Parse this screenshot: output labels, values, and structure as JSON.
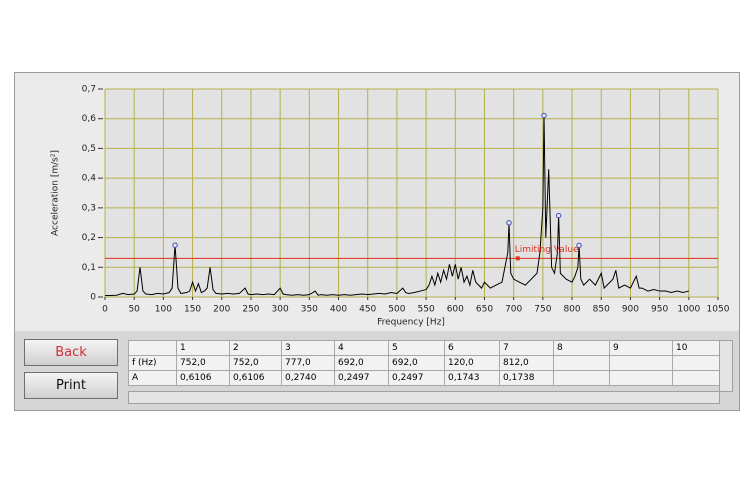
{
  "chart_data": {
    "type": "line",
    "y_label": "Acceleration [m/s²]",
    "x_label": "Frequency [Hz]",
    "color": "#000000",
    "grid": true,
    "grid_color": "#b5b04a",
    "xlim": [
      0,
      1050
    ],
    "xticks": [
      0,
      50,
      100,
      150,
      200,
      250,
      300,
      350,
      400,
      450,
      500,
      550,
      600,
      650,
      700,
      750,
      800,
      850,
      900,
      950,
      1000,
      1050
    ],
    "ylim": [
      0,
      0.7
    ],
    "yticks": [
      0,
      {
        "value": 0.1,
        "label": "0,1"
      },
      {
        "value": 0.2,
        "label": "0,2"
      },
      {
        "value": 0.3,
        "label": "0,3"
      },
      {
        "value": 0.4,
        "label": "0,4"
      },
      {
        "value": 0.5,
        "label": "0,5"
      },
      {
        "value": 0.6,
        "label": "0,6"
      },
      {
        "value": 0.7,
        "label": "0,7"
      }
    ],
    "x": [
      0,
      10,
      20,
      30,
      40,
      50,
      55,
      60,
      65,
      70,
      80,
      90,
      100,
      110,
      115,
      120,
      125,
      130,
      140,
      145,
      150,
      155,
      160,
      165,
      170,
      175,
      180,
      185,
      190,
      200,
      210,
      220,
      230,
      240,
      245,
      250,
      260,
      270,
      280,
      290,
      300,
      305,
      310,
      320,
      330,
      340,
      350,
      360,
      365,
      370,
      380,
      390,
      400,
      410,
      420,
      430,
      440,
      450,
      460,
      470,
      480,
      490,
      500,
      510,
      515,
      520,
      530,
      540,
      550,
      555,
      560,
      565,
      570,
      575,
      580,
      585,
      590,
      595,
      600,
      605,
      610,
      615,
      620,
      625,
      630,
      635,
      640,
      645,
      650,
      660,
      670,
      680,
      685,
      690,
      692,
      695,
      700,
      710,
      720,
      730,
      740,
      745,
      750,
      752,
      755,
      760,
      765,
      770,
      775,
      777,
      780,
      790,
      800,
      805,
      810,
      812,
      815,
      820,
      830,
      840,
      850,
      855,
      860,
      870,
      875,
      880,
      890,
      900,
      905,
      910,
      915,
      920,
      930,
      940,
      950,
      960,
      970,
      980,
      990,
      1000
    ],
    "values": [
      0.005,
      0.005,
      0.006,
      0.012,
      0.008,
      0.01,
      0.02,
      0.1,
      0.02,
      0.01,
      0.008,
      0.012,
      0.01,
      0.015,
      0.03,
      0.1743,
      0.03,
      0.012,
      0.015,
      0.02,
      0.05,
      0.02,
      0.045,
      0.015,
      0.02,
      0.03,
      0.1,
      0.025,
      0.012,
      0.01,
      0.012,
      0.01,
      0.012,
      0.03,
      0.01,
      0.008,
      0.01,
      0.008,
      0.01,
      0.008,
      0.03,
      0.01,
      0.008,
      0.006,
      0.008,
      0.006,
      0.008,
      0.02,
      0.006,
      0.008,
      0.006,
      0.008,
      0.006,
      0.008,
      0.006,
      0.008,
      0.01,
      0.008,
      0.01,
      0.012,
      0.01,
      0.015,
      0.012,
      0.03,
      0.015,
      0.012,
      0.015,
      0.02,
      0.025,
      0.04,
      0.07,
      0.04,
      0.08,
      0.05,
      0.09,
      0.06,
      0.11,
      0.07,
      0.11,
      0.06,
      0.1,
      0.05,
      0.07,
      0.04,
      0.09,
      0.05,
      0.04,
      0.03,
      0.05,
      0.03,
      0.04,
      0.05,
      0.1,
      0.15,
      0.2497,
      0.08,
      0.06,
      0.05,
      0.04,
      0.06,
      0.08,
      0.15,
      0.3,
      0.6106,
      0.2,
      0.43,
      0.1,
      0.08,
      0.15,
      0.274,
      0.08,
      0.06,
      0.05,
      0.07,
      0.1,
      0.1738,
      0.06,
      0.04,
      0.06,
      0.04,
      0.08,
      0.03,
      0.04,
      0.06,
      0.09,
      0.03,
      0.04,
      0.03,
      0.05,
      0.07,
      0.03,
      0.03,
      0.02,
      0.025,
      0.02,
      0.02,
      0.015,
      0.02,
      0.015,
      0.02
    ],
    "peaks": {
      "color": "#3f4fb0",
      "x": [
        120,
        692,
        752,
        777,
        812
      ],
      "values": [
        0.1743,
        0.2497,
        0.6106,
        0.274,
        0.1738
      ]
    },
    "limit": {
      "label": "Limiting Value",
      "value": 0.13,
      "x": 707,
      "color": "#e0301e"
    }
  },
  "buttons": [
    "Back",
    "Print"
  ],
  "table": {
    "header": [
      "1",
      "2",
      "3",
      "4",
      "5",
      "6",
      "7",
      "8",
      "9",
      "10"
    ],
    "rows": [
      [
        "f (Hz)",
        "752,0",
        "752,0",
        "777,0",
        "692,0",
        "692,0",
        "120,0",
        "812,0"
      ],
      [
        "A",
        "0,6106",
        "0,6106",
        "0,2740",
        "0,2497",
        "0,2497",
        "0,1743",
        "0,1738"
      ]
    ]
  }
}
